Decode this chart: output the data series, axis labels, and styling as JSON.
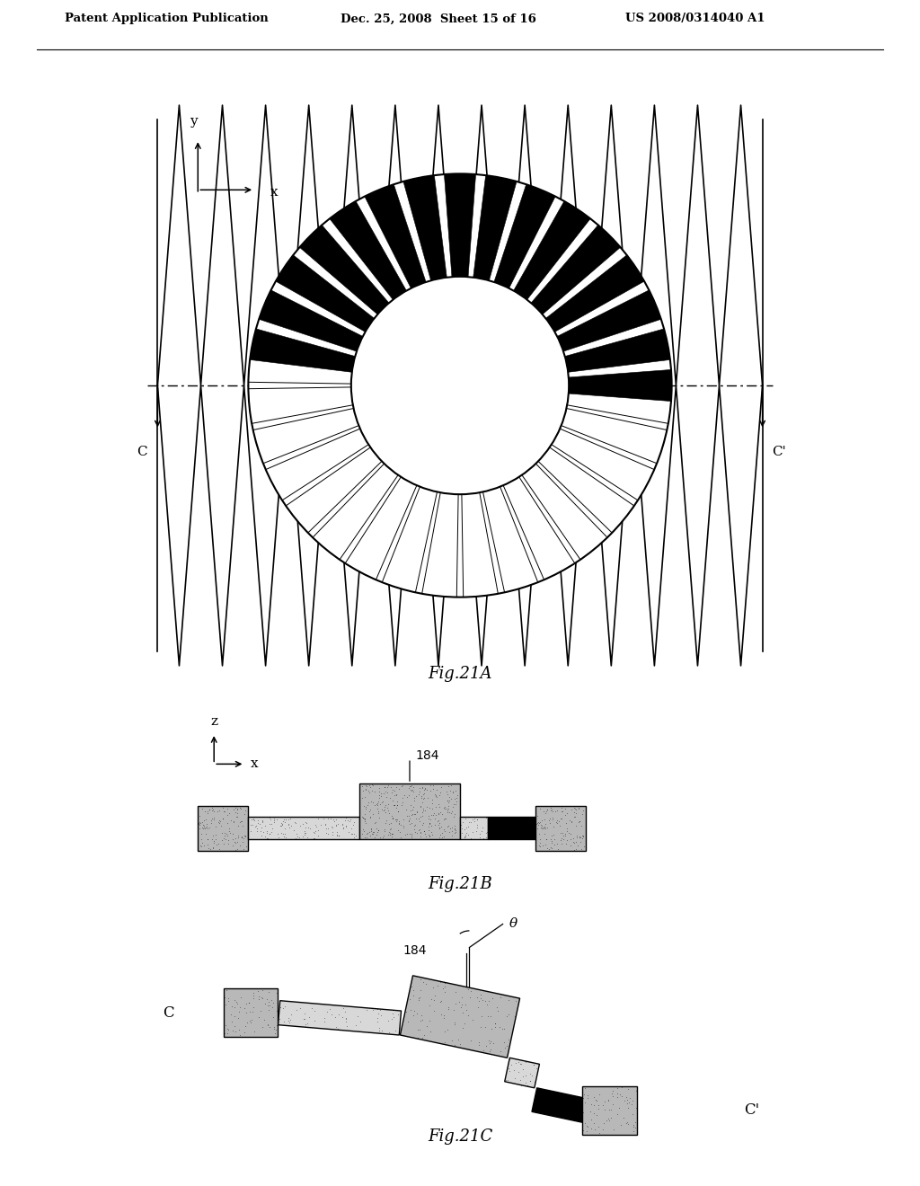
{
  "header_left": "Patent Application Publication",
  "header_mid": "Dec. 25, 2008  Sheet 15 of 16",
  "header_right": "US 2008/0314040 A1",
  "fig21A_label": "Fig.21A",
  "fig21B_label": "Fig.21B",
  "fig21C_label": "Fig.21C",
  "label_184": "184",
  "label_theta": "θ",
  "bg_color": "#ffffff",
  "stipple_color": "#c8c8c8",
  "stipple_light": "#e0e0e0",
  "gray_med": "#b0b0b0"
}
